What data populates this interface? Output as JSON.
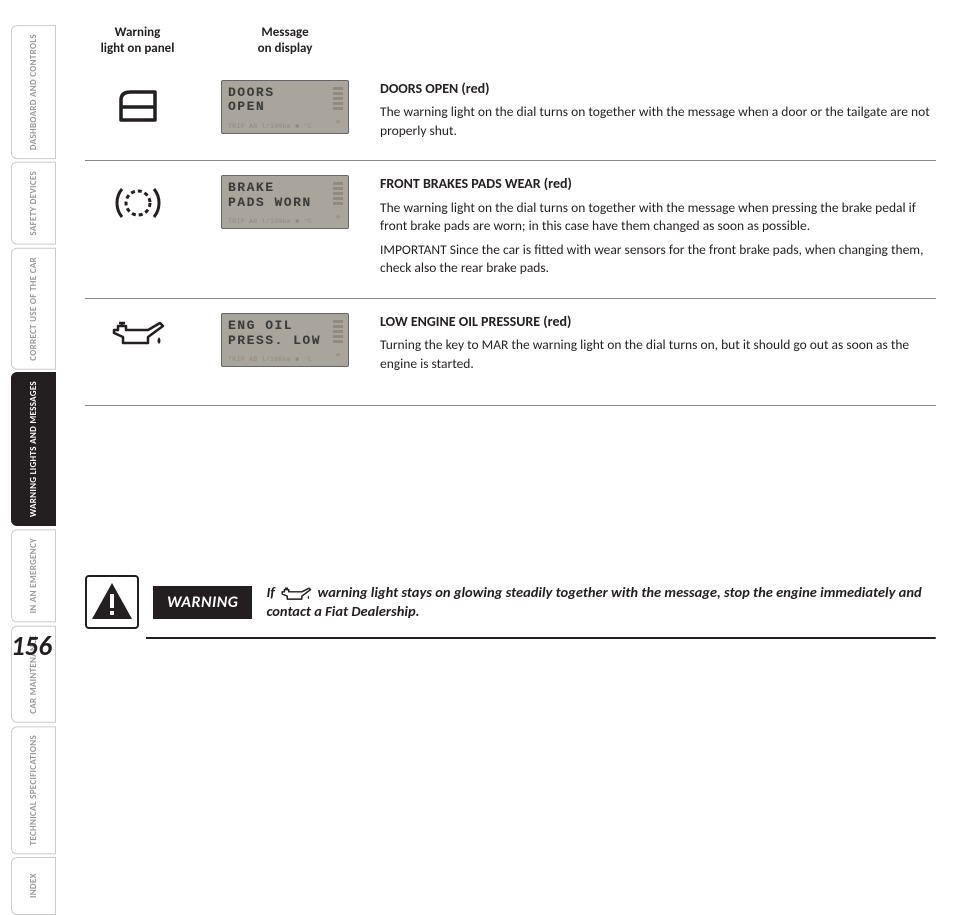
{
  "page_number": "156",
  "sidebar": {
    "tabs": [
      {
        "label": "DASHBOARD AND CONTROLS",
        "active": false
      },
      {
        "label": "SAFETY DEVICES",
        "active": false
      },
      {
        "label": "CORRECT USE OF THE CAR",
        "active": false
      },
      {
        "label": "WARNING LIGHTS AND MESSAGES",
        "active": true
      },
      {
        "label": "IN AN EMERGENCY",
        "active": false
      },
      {
        "label": "CAR MAINTENANCE",
        "active": false
      },
      {
        "label": "TECHNICAL SPECIFICATIONS",
        "active": false
      },
      {
        "label": "INDEX",
        "active": false
      }
    ]
  },
  "headers": {
    "col1_line1": "Warning",
    "col1_line2": "light on panel",
    "col2_line1": "Message",
    "col2_line2": "on display"
  },
  "rows": [
    {
      "icon": "door",
      "lcd_line1": "DOORS",
      "lcd_line2": "OPEN",
      "lcd_sub": "TRIP AB  l/100km  ■ °C",
      "title": "DOORS OPEN  (red)",
      "paragraphs": [
        "The warning light on the dial turns on together with the message when a door or the tailgate are not properly shut."
      ]
    },
    {
      "icon": "brake",
      "lcd_line1": "BRAKE",
      "lcd_line2": "PADS WORN",
      "lcd_sub": "TRIP AB  l/100km  ■ °C",
      "title": "FRONT BRAKES PADS WEAR (red)",
      "paragraphs": [
        "The warning light on the dial turns on together with the message when pressing the brake pedal if front brake pads are worn; in this case have them changed as soon as possible.",
        "IMPORTANT Since the car is fitted with wear sensors for the front brake pads, when changing them, check also the rear brake pads."
      ]
    },
    {
      "icon": "oil",
      "lcd_line1": "ENG OIL",
      "lcd_line2": "PRESS. LOW",
      "lcd_sub": "TRIP AB  l/100km  ■ °C",
      "title": "LOW ENGINE OIL PRESSURE (red)",
      "paragraphs": [
        "Turning the key to MAR the warning light on the dial turns on, but it should go out as soon as the engine is started."
      ]
    }
  ],
  "warning": {
    "label": "WARNING",
    "text_before": "If ",
    "text_after": " warning light stays on glowing steadily together with the message, stop the engine immediately and contact a Fiat Dealership."
  },
  "colors": {
    "lcd_bg": "#a9a59c",
    "text": "#231f20",
    "inactive": "#999999"
  }
}
